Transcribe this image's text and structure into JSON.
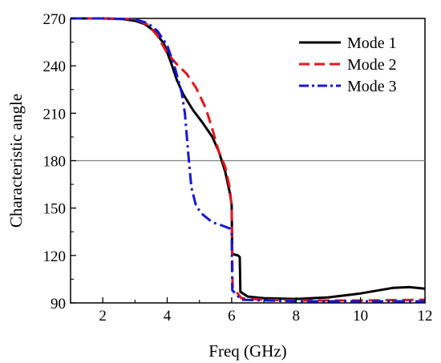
{
  "chart_data": {
    "type": "line",
    "title": "",
    "xlabel": "Freq (GHz)",
    "ylabel": "Characteristic angle",
    "xlim": [
      1,
      12
    ],
    "ylim": [
      90,
      270
    ],
    "xticks": [
      2,
      4,
      6,
      8,
      10,
      12
    ],
    "yticks": [
      90,
      120,
      150,
      180,
      210,
      240,
      270
    ],
    "grid": false,
    "legend_position": "top-right",
    "reference_line": {
      "y": 180,
      "color": "#808080"
    },
    "series": [
      {
        "name": "Mode 1",
        "color": "#000000",
        "style": "solid",
        "points": [
          [
            1,
            270
          ],
          [
            2,
            270
          ],
          [
            2.6,
            269.6
          ],
          [
            3,
            268.5
          ],
          [
            3.3,
            266.5
          ],
          [
            3.6,
            262
          ],
          [
            3.9,
            254
          ],
          [
            4.1,
            243
          ],
          [
            4.3,
            231
          ],
          [
            4.5,
            222
          ],
          [
            4.8,
            212
          ],
          [
            5.1,
            204
          ],
          [
            5.4,
            195
          ],
          [
            5.6,
            186
          ],
          [
            5.8,
            173
          ],
          [
            5.95,
            159
          ],
          [
            6.0,
            152
          ],
          [
            6.02,
            121
          ],
          [
            6.2,
            120
          ],
          [
            6.25,
            119
          ],
          [
            6.27,
            97
          ],
          [
            6.5,
            94
          ],
          [
            7,
            93
          ],
          [
            8,
            92.5
          ],
          [
            9,
            93.5
          ],
          [
            10,
            96
          ],
          [
            11,
            99.5
          ],
          [
            11.5,
            100
          ],
          [
            12,
            99
          ]
        ]
      },
      {
        "name": "Mode 2",
        "color": "#e8141c",
        "style": "dashed",
        "points": [
          [
            1,
            270
          ],
          [
            2,
            270
          ],
          [
            3,
            269.5
          ],
          [
            3.4,
            266
          ],
          [
            3.7,
            259
          ],
          [
            4.0,
            248
          ],
          [
            4.3,
            241
          ],
          [
            4.6,
            235
          ],
          [
            4.9,
            226
          ],
          [
            5.2,
            213
          ],
          [
            5.4,
            200
          ],
          [
            5.6,
            186
          ],
          [
            5.8,
            176
          ],
          [
            5.95,
            162
          ],
          [
            6.0,
            150
          ],
          [
            6.03,
            100
          ],
          [
            6.3,
            93
          ],
          [
            7,
            92
          ],
          [
            8,
            91.5
          ],
          [
            10,
            91.5
          ],
          [
            12,
            92
          ]
        ]
      },
      {
        "name": "Mode 3",
        "color": "#1419d8",
        "style": "dashdot",
        "points": [
          [
            1,
            270
          ],
          [
            2,
            270
          ],
          [
            3,
            269.5
          ],
          [
            3.4,
            267
          ],
          [
            3.7,
            262
          ],
          [
            4.0,
            253
          ],
          [
            4.25,
            238
          ],
          [
            4.45,
            223
          ],
          [
            4.55,
            210
          ],
          [
            4.65,
            185
          ],
          [
            4.75,
            163
          ],
          [
            4.9,
            151
          ],
          [
            5.1,
            146
          ],
          [
            5.4,
            141
          ],
          [
            5.7,
            139
          ],
          [
            5.95,
            137
          ],
          [
            6.0,
            134
          ],
          [
            6.02,
            98
          ],
          [
            6.3,
            92
          ],
          [
            8,
            91
          ],
          [
            10,
            91
          ],
          [
            12,
            91
          ]
        ]
      }
    ]
  }
}
